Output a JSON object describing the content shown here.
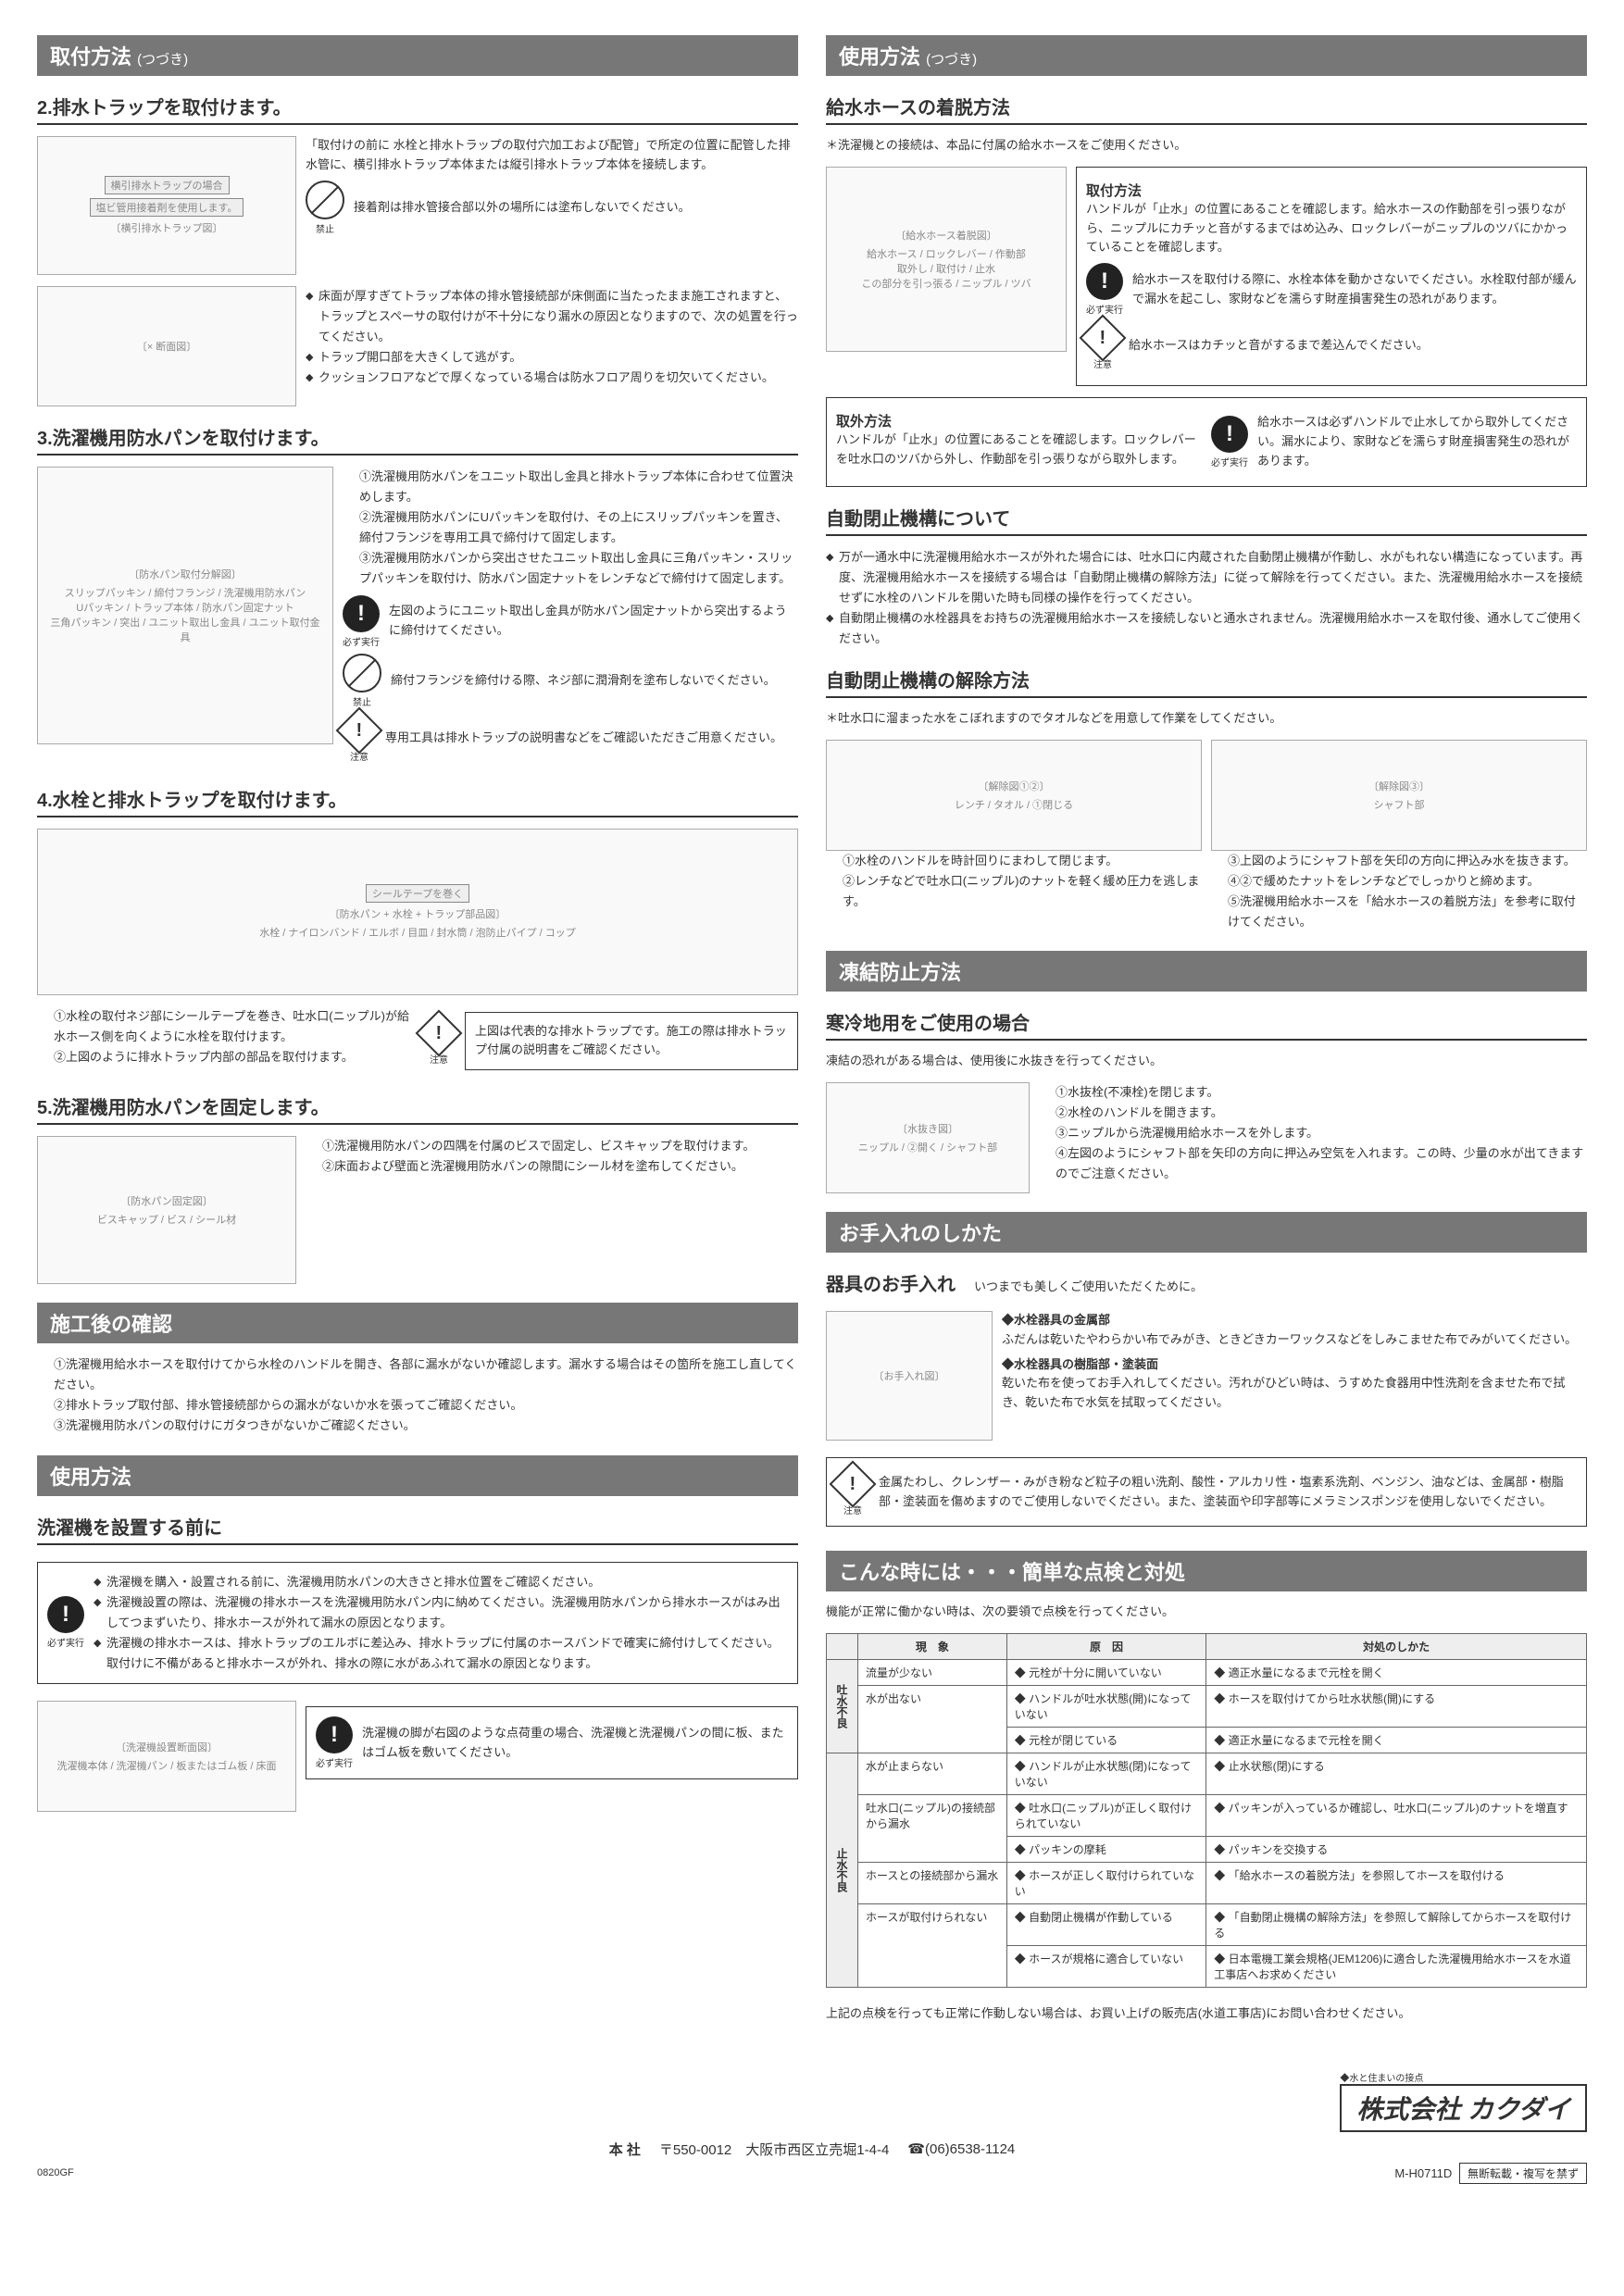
{
  "left": {
    "h1": "取付方法",
    "h1sub": "(つづき)",
    "s2": {
      "title": "2.排水トラップを取付けます。",
      "tag1": "横引排水トラップの場合",
      "tag2": "塩ビ管用接着剤を使用します。",
      "text1": "「取付けの前に 水栓と排水トラップの取付穴加工および配管」で所定の位置に配管した排水管に、横引排水トラップ本体または縦引排水トラップ本体を接続します。",
      "prohibit_label": "禁止",
      "prohibit_text": "接着剤は排水管接合部以外の場所には塗布しないでください。",
      "bullets": [
        "床面が厚すぎてトラップ本体の排水管接続部が床側面に当たったまま施工されますと、トラップとスペーサの取付けが不十分になり漏水の原因となりますので、次の処置を行ってください。",
        "トラップ開口部を大きくして逃がす。",
        "クッションフロアなどで厚くなっている場合は防水フロア周りを切欠いてください。"
      ]
    },
    "s3": {
      "title": "3.洗濯機用防水パンを取付けます。",
      "labels": [
        "スリップパッキン",
        "締付フランジ",
        "洗濯機用防水パン",
        "Uパッキン",
        "トラップ本体",
        "防水パン固定ナット",
        "三角パッキン",
        "突出",
        "ユニット取出し金具",
        "ユニット取付金具"
      ],
      "steps": [
        "①洗濯機用防水パンをユニット取出し金具と排水トラップ本体に合わせて位置決めします。",
        "②洗濯機用防水パンにUパッキンを取付け、その上にスリップパッキンを置き、締付フランジを専用工具で締付けて固定します。",
        "③洗濯機用防水パンから突出させたユニット取出し金具に三角パッキン・スリップパッキンを取付け、防水パン固定ナットをレンチなどで締付けて固定します。"
      ],
      "must_label": "必ず実行",
      "must_text": "左図のようにユニット取出し金具が防水パン固定ナットから突出するように締付けてください。",
      "prohibit_label": "禁止",
      "prohibit_text": "締付フランジを締付ける際、ネジ部に潤滑剤を塗布しないでください。",
      "caution_label": "注意",
      "caution_text": "専用工具は排水トラップの説明書などをご確認いただきご用意ください。"
    },
    "s4": {
      "title": "4.水栓と排水トラップを取付けます。",
      "tag": "シールテープを巻く",
      "labels": [
        "水栓",
        "ナイロンバンド",
        "エルボ",
        "目皿",
        "封水筒",
        "泡防止パイプ",
        "コップ"
      ],
      "steps": [
        "①水栓の取付ネジ部にシールテープを巻き、吐水口(ニップル)が給水ホース側を向くように水栓を取付けます。",
        "②上図のように排水トラップ内部の部品を取付けます。"
      ],
      "caution_label": "注意",
      "caution_text": "上図は代表的な排水トラップです。施工の際は排水トラップ付属の説明書をご確認ください。"
    },
    "s5": {
      "title": "5.洗濯機用防水パンを固定します。",
      "labels": [
        "ビスキャップ",
        "ビス",
        "シール材"
      ],
      "steps": [
        "①洗濯機用防水パンの四隅を付属のビスで固定し、ビスキャップを取付けます。",
        "②床面および壁面と洗濯機用防水パンの隙間にシール材を塗布してください。"
      ]
    },
    "check": {
      "header": "施工後の確認",
      "items": [
        "①洗濯機用給水ホースを取付けてから水栓のハンドルを開き、各部に漏水がないか確認します。漏水する場合はその箇所を施工し直してください。",
        "②排水トラップ取付部、排水管接続部からの漏水がないか水を張ってご確認ください。",
        "③洗濯機用防水パンの取付けにガタつきがないかご確認ください。"
      ]
    },
    "usage": {
      "header": "使用方法",
      "subhead": "洗濯機を設置する前に",
      "must_label": "必ず実行",
      "bullets": [
        "洗濯機を購入・設置される前に、洗濯機用防水パンの大きさと排水位置をご確認ください。",
        "洗濯機設置の際は、洗濯機の排水ホースを洗濯機用防水パン内に納めてください。洗濯機用防水パンから排水ホースがはみ出してつまずいたり、排水ホースが外れて漏水の原因となります。",
        "洗濯機の排水ホースは、排水トラップのエルボに差込み、排水トラップに付属のホースバンドで確実に締付けしてください。取付けに不備があると排水ホースが外れ、排水の際に水があふれて漏水の原因となります。"
      ],
      "fig_labels": [
        "洗濯機本体",
        "洗濯機パン",
        "板またはゴム板",
        "床面"
      ],
      "must2_label": "必ず実行",
      "must2_text": "洗濯機の脚が右図のような点荷重の場合、洗濯機と洗濯機パンの間に板、またはゴム板を敷いてください。"
    }
  },
  "right": {
    "h1": "使用方法",
    "h1sub": "(つづき)",
    "hose": {
      "subhead": "給水ホースの着脱方法",
      "note": "＊洗濯機との接続は、本品に付属の給水ホースをご使用ください。",
      "labels": [
        "給水ホース",
        "ロックレバー",
        "作動部",
        "取外し",
        "取付け",
        "止水",
        "この部分を引っ張る",
        "ニップル",
        "ツバ"
      ],
      "install_title": "取付方法",
      "install_text": "ハンドルが「止水」の位置にあることを確認します。給水ホースの作動部を引っ張りながら、ニップルにカチッと音がするまではめ込み、ロックレバーがニップルのツバにかかっていることを確認します。",
      "must_label": "必ず実行",
      "must_text": "給水ホースを取付ける際に、水栓本体を動かさないでください。水栓取付部が緩んで漏水を起こし、家財などを濡らす財産損害発生の恐れがあります。",
      "caution_label": "注意",
      "caution_text": "給水ホースはカチッと音がするまで差込んでください。",
      "remove_title": "取外方法",
      "remove_text": "ハンドルが「止水」の位置にあることを確認します。ロックレバーを吐水口のツバから外し、作動部を引っ張りながら取外します。",
      "must2_label": "必ず実行",
      "must2_text": "給水ホースは必ずハンドルで止水してから取外してください。漏水により、家財などを濡らす財産損害発生の恐れがあります。"
    },
    "auto": {
      "subhead": "自動閉止機構について",
      "bullets": [
        "万が一通水中に洗濯機用給水ホースが外れた場合には、吐水口に内蔵された自動閉止機構が作動し、水がもれない構造になっています。再度、洗濯機用給水ホースを接続する場合は「自動閉止機構の解除方法」に従って解除を行ってください。また、洗濯機用給水ホースを接続せずに水栓のハンドルを開いた時も同様の操作を行ってください。",
        "自動閉止機構の水栓器具をお持ちの洗濯機用給水ホースを接続しないと通水されません。洗濯機用給水ホースを取付後、通水してご使用ください。"
      ]
    },
    "release": {
      "subhead": "自動閉止機構の解除方法",
      "note": "＊吐水口に溜まった水をこぼれますのでタオルなどを用意して作業をしてください。",
      "labels": [
        "レンチ",
        "タオル",
        "①閉じる",
        "シャフト部"
      ],
      "left_steps": [
        "①水栓のハンドルを時計回りにまわして閉じます。",
        "②レンチなどで吐水口(ニップル)のナットを軽く緩め圧力を逃します。"
      ],
      "right_steps": [
        "③上図のようにシャフト部を矢印の方向に押込み水を抜きます。",
        "④②で緩めたナットをレンチなどでしっかりと締めます。",
        "⑤洗濯機用給水ホースを「給水ホースの着脱方法」を参考に取付けてください。"
      ]
    },
    "freeze": {
      "header": "凍結防止方法",
      "subhead": "寒冷地用をご使用の場合",
      "intro": "凍結の恐れがある場合は、使用後に水抜きを行ってください。",
      "labels": [
        "ニップル",
        "②開く",
        "シャフト部"
      ],
      "steps": [
        "①水抜栓(不凍栓)を閉じます。",
        "②水栓のハンドルを開きます。",
        "③ニップルから洗濯機用給水ホースを外します。",
        "④左図のようにシャフト部を矢印の方向に押込み空気を入れます。この時、少量の水が出てきますのでご注意ください。"
      ]
    },
    "care": {
      "header": "お手入れのしかた",
      "subhead": "器具のお手入れ",
      "tag": "いつまでも美しくご使用いただくために。",
      "metal_title": "◆水栓器具の金属部",
      "metal_text": "ふだんは乾いたやわらかい布でみがき、ときどきカーワックスなどをしみこませた布でみがいてください。",
      "resin_title": "◆水栓器具の樹脂部・塗装面",
      "resin_text": "乾いた布を使ってお手入れしてください。汚れがひどい時は、うすめた食器用中性洗剤を含ませた布で拭き、乾いた布で水気を拭取ってください。",
      "caution_label": "注意",
      "caution_text": "金属たわし、クレンザー・みがき粉など粒子の粗い洗剤、酸性・アルカリ性・塩素系洗剤、ベンジン、油などは、金属部・樹脂部・塗装面を傷めますのでご使用しないでください。また、塗装面や印字部等にメラミンスポンジを使用しないでください。"
    },
    "trouble": {
      "header": "こんな時には・・・簡単な点検と対処",
      "intro": "機能が正常に働かない時は、次の要領で点検を行ってください。",
      "th": [
        "現　象",
        "原　因",
        "対処のしかた"
      ],
      "g1": "吐水不良",
      "g2": "止水不良",
      "rows": [
        {
          "g": 1,
          "p": "流量が少ない",
          "c": "◆ 元栓が十分に開いていない",
          "a": "◆ 適正水量になるまで元栓を開く"
        },
        {
          "g": 1,
          "p": "水が出ない",
          "c": "◆ ハンドルが吐水状態(開)になっていない",
          "a": "◆ ホースを取付けてから吐水状態(開)にする"
        },
        {
          "g": 1,
          "p": "",
          "c": "◆ 元栓が閉じている",
          "a": "◆ 適正水量になるまで元栓を開く"
        },
        {
          "g": 2,
          "p": "水が止まらない",
          "c": "◆ ハンドルが止水状態(閉)になっていない",
          "a": "◆ 止水状態(閉)にする"
        },
        {
          "g": 2,
          "p": "吐水口(ニップル)の接続部から漏水",
          "c": "◆ 吐水口(ニップル)が正しく取付けられていない",
          "a": "◆ パッキンが入っているか確認し、吐水口(ニップル)のナットを増直す"
        },
        {
          "g": 2,
          "p": "",
          "c": "◆ パッキンの摩耗",
          "a": "◆ パッキンを交換する"
        },
        {
          "g": 2,
          "p": "ホースとの接続部から漏水",
          "c": "◆ ホースが正しく取付けられていない",
          "a": "◆ 「給水ホースの着脱方法」を参照してホースを取付ける"
        },
        {
          "g": 2,
          "p": "ホースが取付けられない",
          "c": "◆ 自動閉止機構が作動している",
          "a": "◆ 「自動閉止機構の解除方法」を参照して解除してからホースを取付ける"
        },
        {
          "g": 2,
          "p": "",
          "c": "◆ ホースが規格に適合していない",
          "a": "◆ 日本電機工業会規格(JEM1206)に適合した洗濯機用給水ホースを水道工事店へお求めください"
        }
      ],
      "outro": "上記の点検を行っても正常に作動しない場合は、お買い上げの販売店(水道工事店)にお問い合わせください。"
    }
  },
  "footer": {
    "logo_sub": "◆水と住まいの接点",
    "logo": "株式会社 カクダイ",
    "addr_label": "本 社",
    "addr": "〒550-0012　大阪市西区立売堀1-4-4",
    "tel": "☎(06)6538-1124",
    "code": "0820GF",
    "doc": "M-H0711D",
    "noprint": "無断転載・複写を禁ず"
  }
}
